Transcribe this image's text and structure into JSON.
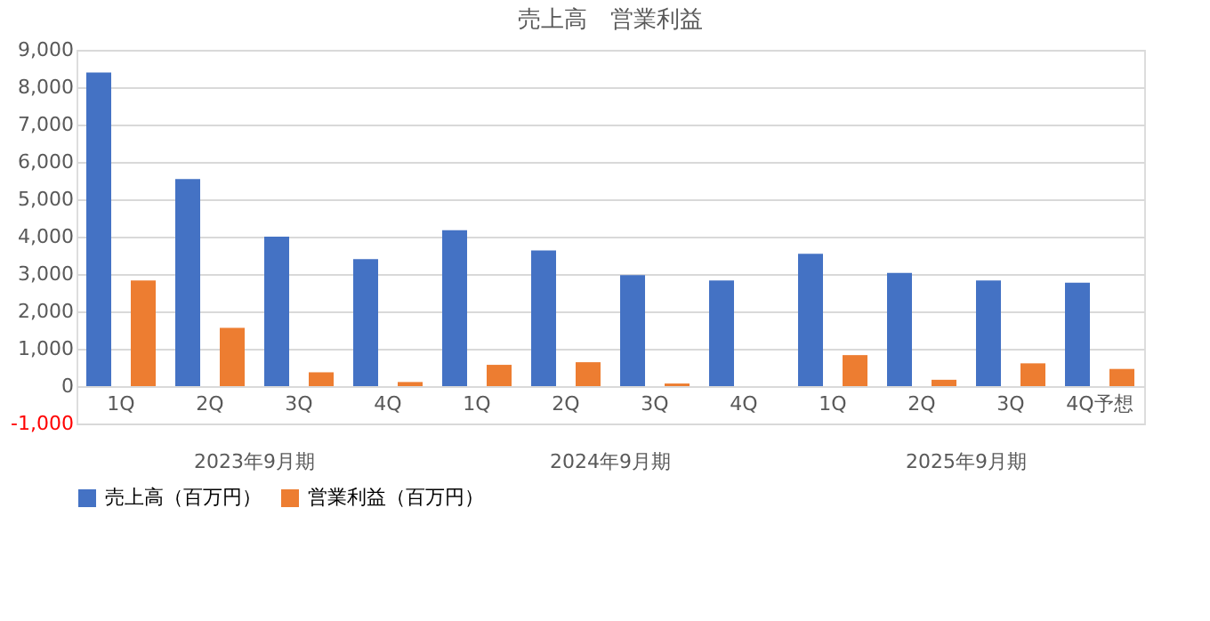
{
  "chart_data": {
    "type": "bar",
    "title": "売上高　営業利益",
    "categories": [
      "1Q",
      "2Q",
      "3Q",
      "4Q",
      "1Q",
      "2Q",
      "3Q",
      "4Q",
      "1Q",
      "2Q",
      "3Q",
      "4Q予想"
    ],
    "annotations": [
      "2023年9月期",
      "2024年9月期",
      "2025年9月期"
    ],
    "series": [
      {
        "name": "売上高（百万円）",
        "color": "#4472c4",
        "values": [
          8390,
          5540,
          4000,
          3400,
          4170,
          3630,
          2970,
          2830,
          3540,
          3030,
          2830,
          2770
        ]
      },
      {
        "name": "営業利益（百万円）",
        "color": "#ed7d31",
        "values": [
          2830,
          1560,
          370,
          110,
          570,
          640,
          70,
          0,
          830,
          170,
          610,
          460
        ]
      }
    ],
    "ylim": [
      -1000,
      9000
    ],
    "yticks": [
      {
        "value": -1000,
        "label": "-1,000"
      },
      0,
      {
        "value": 1000,
        "label": "1,000"
      },
      {
        "value": 2000,
        "label": "2,000"
      },
      {
        "value": 3000,
        "label": "3,000"
      },
      {
        "value": 4000,
        "label": "4,000"
      },
      {
        "value": 5000,
        "label": "5,000"
      },
      {
        "value": 6000,
        "label": "6,000"
      },
      {
        "value": 7000,
        "label": "7,000"
      },
      {
        "value": 8000,
        "label": "8,000"
      },
      {
        "value": 9000,
        "label": "9,000"
      }
    ],
    "grid": "y",
    "legend": "bottom"
  }
}
